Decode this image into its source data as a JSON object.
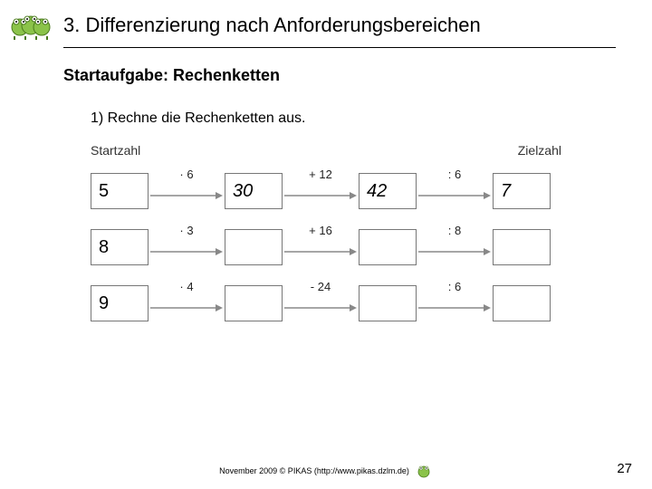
{
  "header": {
    "title": "3. Differenzierung nach Anforderungsbereichen"
  },
  "subtitle": "Startaufgabe:  Rechenketten",
  "instruction": "1) Rechne die Rechenketten aus.",
  "labels": {
    "start": "Startzahl",
    "target": "Zielzahl"
  },
  "chains": [
    {
      "cells": [
        "5",
        "30",
        "42",
        "7"
      ],
      "cells_italic": [
        false,
        true,
        true,
        true
      ],
      "ops": [
        "· 6",
        "+ 12",
        ": 6"
      ]
    },
    {
      "cells": [
        "8",
        "",
        "",
        ""
      ],
      "cells_italic": [
        false,
        false,
        false,
        false
      ],
      "ops": [
        "· 3",
        "+ 16",
        ": 8"
      ]
    },
    {
      "cells": [
        "9",
        "",
        "",
        ""
      ],
      "cells_italic": [
        false,
        false,
        false,
        false
      ],
      "ops": [
        "· 4",
        "- 24",
        ": 6"
      ]
    }
  ],
  "footer": {
    "text": "November 2009 © PIKAS (http://www.pikas.dzlm.de)",
    "page": "27"
  },
  "colors": {
    "arrow": "#888888",
    "box_border": "#777777",
    "frog_body": "#8bc34a",
    "frog_dark": "#4b7b1e"
  }
}
